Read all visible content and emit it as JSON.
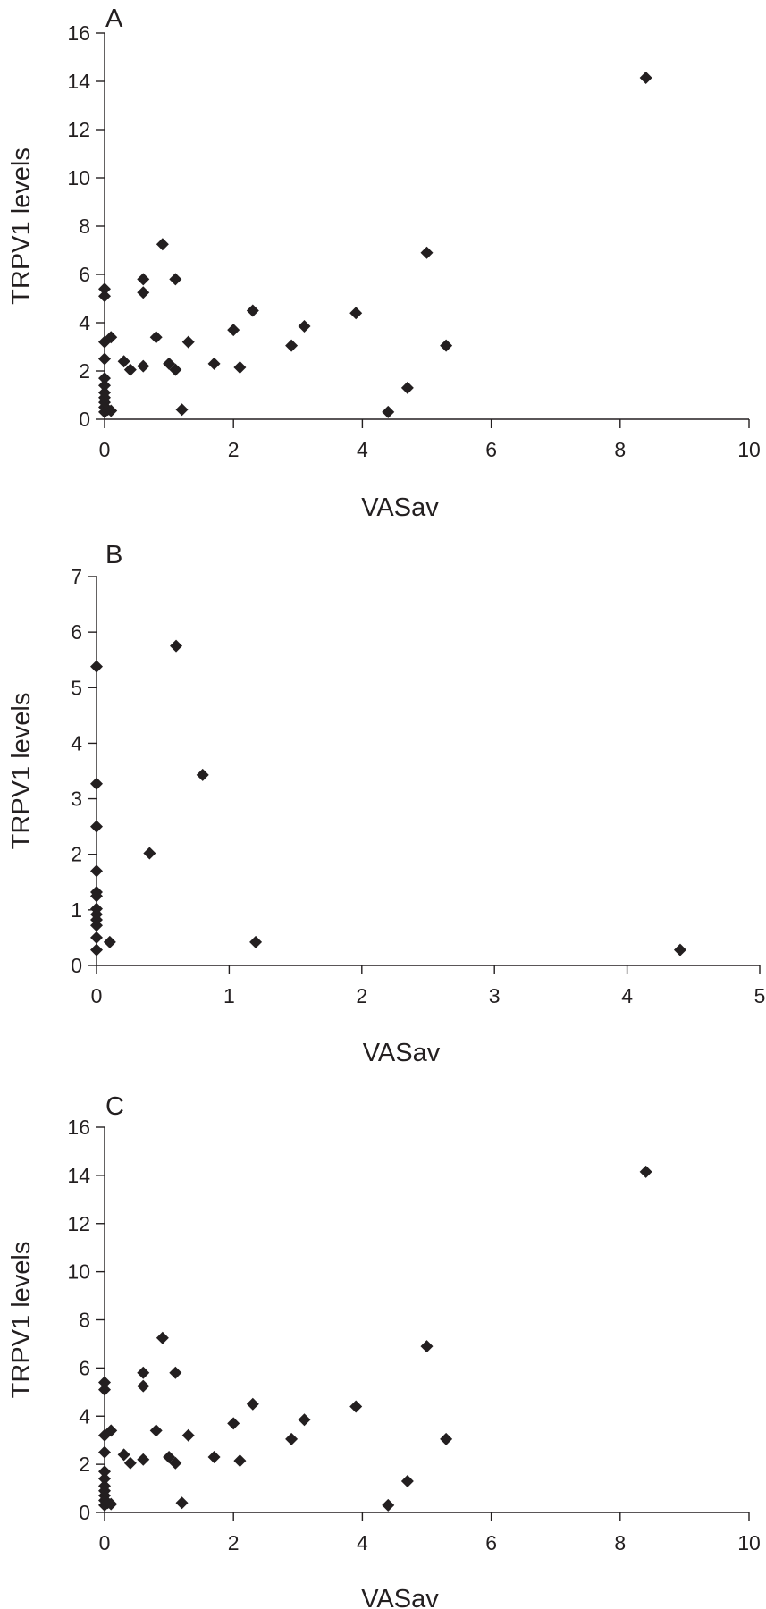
{
  "chart_data": [
    {
      "type": "scatter",
      "panel_label": "A",
      "xlabel": "VASav",
      "ylabel": "TRPV1 levels",
      "xlim": [
        0,
        10
      ],
      "ylim": [
        0,
        16
      ],
      "x_ticks": [
        "0",
        "2",
        "4",
        "6",
        "8",
        "10"
      ],
      "y_ticks": [
        "0",
        "2",
        "4",
        "6",
        "8",
        "10",
        "12",
        "14",
        "16"
      ],
      "marker": "diamond",
      "grid": false,
      "points": [
        [
          0,
          0.3
        ],
        [
          0,
          0.5
        ],
        [
          0,
          0.7
        ],
        [
          0,
          0.9
        ],
        [
          0,
          1.1
        ],
        [
          0,
          1.4
        ],
        [
          0,
          1.7
        ],
        [
          0,
          2.5
        ],
        [
          0,
          3.2
        ],
        [
          0,
          5.1
        ],
        [
          0,
          5.4
        ],
        [
          0.05,
          0.4
        ],
        [
          0.1,
          0.35
        ],
        [
          0.1,
          3.4
        ],
        [
          0.3,
          2.4
        ],
        [
          0.4,
          2.05
        ],
        [
          0.6,
          2.2
        ],
        [
          0.6,
          5.25
        ],
        [
          0.6,
          5.8
        ],
        [
          0.8,
          3.4
        ],
        [
          0.9,
          7.25
        ],
        [
          1.0,
          2.3
        ],
        [
          1.1,
          2.05
        ],
        [
          1.1,
          5.8
        ],
        [
          1.2,
          0.4
        ],
        [
          1.3,
          3.2
        ],
        [
          1.7,
          2.3
        ],
        [
          2.0,
          3.7
        ],
        [
          2.1,
          2.15
        ],
        [
          2.3,
          4.5
        ],
        [
          2.9,
          3.05
        ],
        [
          3.1,
          3.85
        ],
        [
          3.9,
          4.4
        ],
        [
          4.4,
          0.3
        ],
        [
          4.7,
          1.3
        ],
        [
          5.0,
          6.9
        ],
        [
          5.3,
          3.05
        ],
        [
          8.4,
          14.15
        ]
      ]
    },
    {
      "type": "scatter",
      "panel_label": "B",
      "xlabel": "VASav",
      "ylabel": "TRPV1 levels",
      "xlim": [
        0,
        5
      ],
      "ylim": [
        0,
        7
      ],
      "x_ticks": [
        "0",
        "1",
        "2",
        "3",
        "4",
        "5"
      ],
      "y_ticks": [
        "0",
        "1",
        "2",
        "3",
        "4",
        "5",
        "6",
        "7"
      ],
      "marker": "diamond",
      "grid": false,
      "points": [
        [
          0,
          0.28
        ],
        [
          0,
          0.5
        ],
        [
          0,
          0.72
        ],
        [
          0,
          0.82
        ],
        [
          0,
          0.92
        ],
        [
          0,
          1.02
        ],
        [
          0,
          1.25
        ],
        [
          0,
          1.32
        ],
        [
          0,
          1.7
        ],
        [
          0,
          2.5
        ],
        [
          0,
          3.27
        ],
        [
          0,
          5.38
        ],
        [
          0.1,
          0.42
        ],
        [
          0.4,
          2.02
        ],
        [
          0.6,
          5.75
        ],
        [
          0.8,
          3.43
        ],
        [
          1.2,
          0.42
        ],
        [
          4.4,
          0.28
        ]
      ]
    },
    {
      "type": "scatter",
      "panel_label": "C",
      "xlabel": "VASav",
      "ylabel": "TRPV1 levels",
      "xlim": [
        0,
        10
      ],
      "ylim": [
        0,
        16
      ],
      "x_ticks": [
        "0",
        "2",
        "4",
        "6",
        "8",
        "10"
      ],
      "y_ticks": [
        "0",
        "2",
        "4",
        "6",
        "8",
        "10",
        "12",
        "14",
        "16"
      ],
      "marker": "diamond",
      "grid": false,
      "points": [
        [
          0,
          0.3
        ],
        [
          0,
          0.5
        ],
        [
          0,
          0.7
        ],
        [
          0,
          0.9
        ],
        [
          0,
          1.1
        ],
        [
          0,
          1.4
        ],
        [
          0,
          1.7
        ],
        [
          0,
          2.5
        ],
        [
          0,
          3.2
        ],
        [
          0,
          5.1
        ],
        [
          0,
          5.4
        ],
        [
          0.05,
          0.4
        ],
        [
          0.1,
          0.35
        ],
        [
          0.1,
          3.4
        ],
        [
          0.3,
          2.4
        ],
        [
          0.4,
          2.05
        ],
        [
          0.6,
          2.2
        ],
        [
          0.6,
          5.25
        ],
        [
          0.6,
          5.8
        ],
        [
          0.8,
          3.4
        ],
        [
          0.9,
          7.25
        ],
        [
          1.0,
          2.3
        ],
        [
          1.1,
          2.05
        ],
        [
          1.1,
          5.8
        ],
        [
          1.2,
          0.4
        ],
        [
          1.3,
          3.2
        ],
        [
          1.7,
          2.3
        ],
        [
          2.0,
          3.7
        ],
        [
          2.1,
          2.15
        ],
        [
          2.3,
          4.5
        ],
        [
          2.9,
          3.05
        ],
        [
          3.1,
          3.85
        ],
        [
          3.9,
          4.4
        ],
        [
          4.4,
          0.3
        ],
        [
          4.7,
          1.3
        ],
        [
          5.0,
          6.9
        ],
        [
          5.3,
          3.05
        ],
        [
          8.4,
          14.15
        ]
      ]
    }
  ]
}
